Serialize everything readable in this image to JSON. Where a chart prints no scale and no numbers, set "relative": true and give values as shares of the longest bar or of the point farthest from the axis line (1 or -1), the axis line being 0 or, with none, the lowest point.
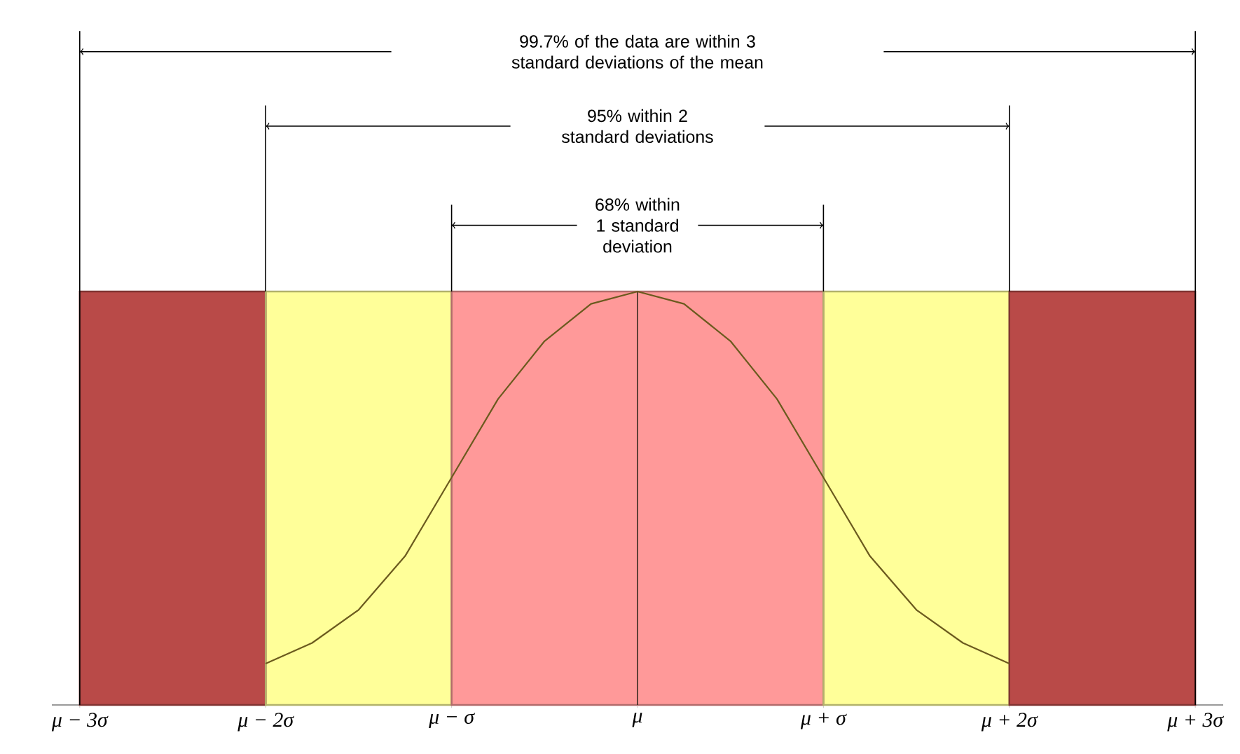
{
  "chart_data": {
    "type": "line",
    "relative": true,
    "x": [
      -2,
      -1.75,
      -1.5,
      -1.25,
      -1,
      -0.75,
      -0.5,
      -0.25,
      0,
      0.25,
      0.5,
      0.75,
      1,
      1.25,
      1.5,
      1.75,
      2
    ],
    "values": [
      0.1,
      0.15,
      0.23,
      0.36,
      0.55,
      0.74,
      0.88,
      0.97,
      1,
      0.97,
      0.88,
      0.74,
      0.55,
      0.36,
      0.23,
      0.15,
      0.1
    ],
    "color": "#6b5a1e",
    "xlim": [
      -3.15,
      3.15
    ],
    "xticks": [
      {
        "value": -3,
        "label": "μ − 3σ"
      },
      {
        "value": -2,
        "label": "μ − 2σ"
      },
      {
        "value": -1,
        "label": "μ − σ"
      },
      {
        "value": 0,
        "label": "μ"
      },
      {
        "value": 1,
        "label": "μ + σ"
      },
      {
        "value": 2,
        "label": "μ + 2σ"
      },
      {
        "value": 3,
        "label": "μ + 3σ"
      }
    ],
    "ref_lines": [
      {
        "axis": "x",
        "value": 0,
        "color": "#3a2a20"
      }
    ],
    "bands": [
      {
        "axis": "x",
        "from": -3,
        "to": -2,
        "color": "#b94a48"
      },
      {
        "axis": "x",
        "from": -2,
        "to": -1,
        "color": "#ffff99"
      },
      {
        "axis": "x",
        "from": -1,
        "to": 1,
        "color": "#ff9999"
      },
      {
        "axis": "x",
        "from": 1,
        "to": 2,
        "color": "#ffff99"
      },
      {
        "axis": "x",
        "from": 2,
        "to": 3,
        "color": "#b94a48"
      }
    ],
    "annotations": [
      "99.7% of the data are within 3 standard deviations of the mean",
      "95% within 2 standard deviations",
      "68% within 1 standard deviation"
    ]
  }
}
